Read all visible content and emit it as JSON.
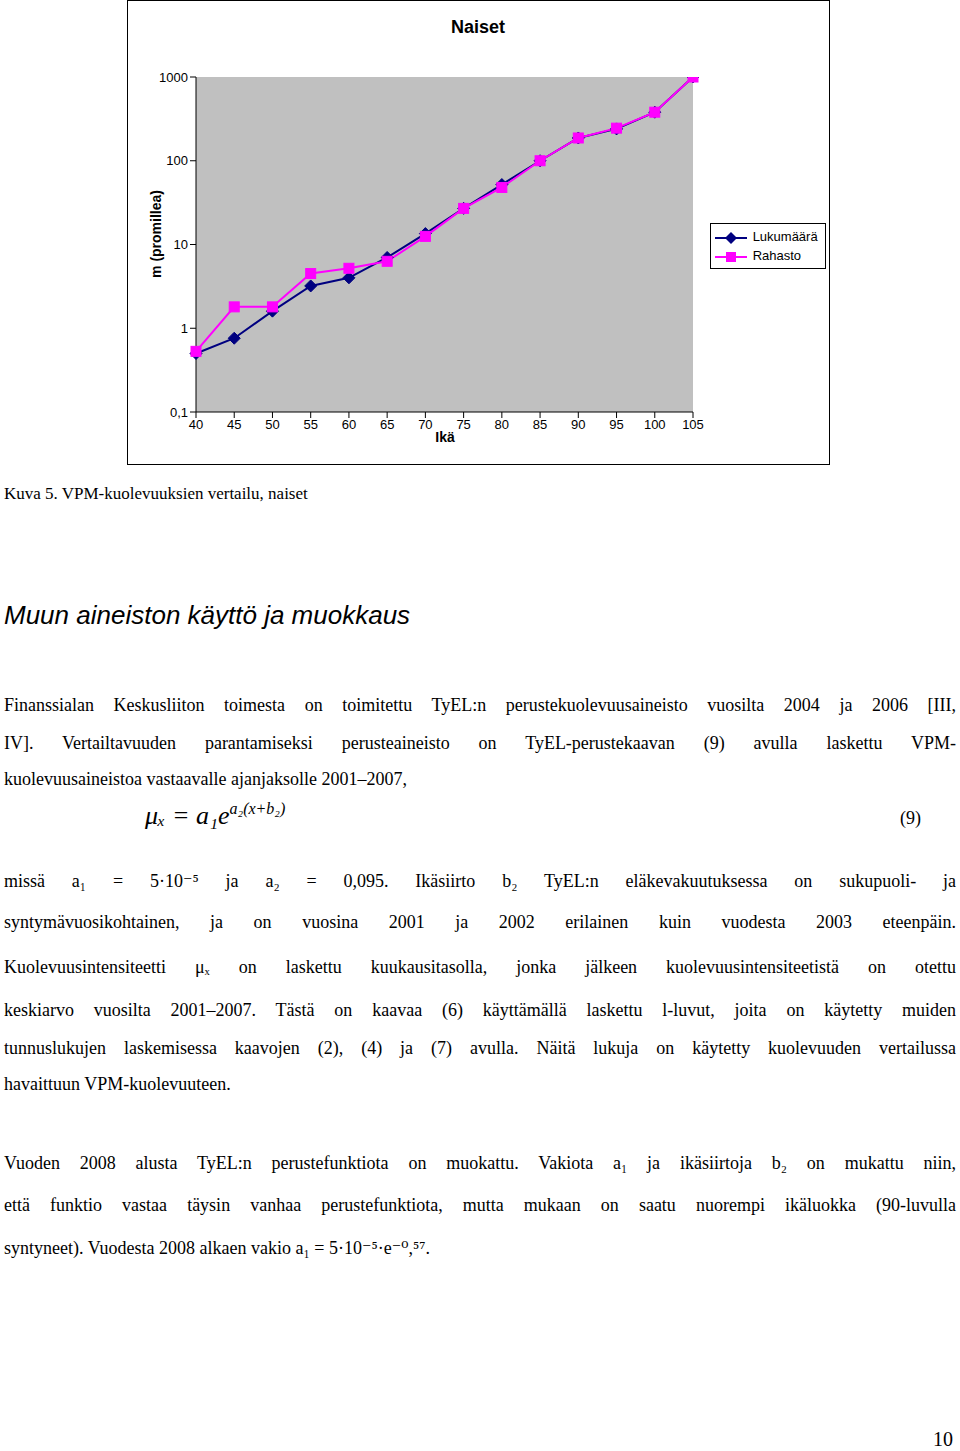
{
  "chart_data": {
    "type": "line",
    "title": "Naiset",
    "y_label": "m (promillea)",
    "x_label": "Ikä",
    "categories": [
      "40",
      "45",
      "50",
      "55",
      "60",
      "65",
      "70",
      "75",
      "80",
      "85",
      "90",
      "95",
      "100",
      "105"
    ],
    "series": [
      {
        "name": "Lukumäärä",
        "color": "#000080",
        "marker": "diamond",
        "values": [
          0.5,
          0.76,
          1.6,
          3.2,
          4.0,
          7.0,
          13.5,
          27,
          52,
          100,
          187,
          240,
          380,
          1000
        ]
      },
      {
        "name": "Rahasto",
        "color": "#ff00ff",
        "marker": "square",
        "values": [
          0.53,
          1.8,
          1.8,
          4.5,
          5.2,
          6.3,
          12.5,
          27,
          48,
          100,
          187,
          245,
          380,
          1000
        ]
      }
    ],
    "log": "y",
    "ylim": [
      0.1,
      1000
    ],
    "yticks": [
      {
        "value": 0.1,
        "label": "0,1"
      },
      1,
      10,
      100,
      1000
    ],
    "grid": false,
    "legend": "right"
  },
  "document": {
    "caption": "Kuva 5. VPM-kuolevuuksien vertailu, naiset",
    "heading": "Muun aineiston käyttö ja muokkaus",
    "paragraph1": [
      "Finanssialan Keskusliiton toimesta on toimitettu TyEL:n perustekuolevuusaineisto vuosilta 2004 ja 2006 [III,",
      "IV]. Vertailtavuuden parantamiseksi perusteaineisto on TyEL-perustekaavan (9) avulla laskettu VPM-",
      "kuolevuusaineistoa vastaavalle ajanjaksolle 2001–2007,"
    ],
    "formula": {
      "text": "μₓ = a₁e",
      "exponent": "a₂(x+b₂)",
      "number": "(9)"
    },
    "paragraph2": [
      "missä a₁ = 5·10⁻⁵ ja a₂ = 0,095. Ikäsiirto b₂ TyEL:n eläkevakuutuksessa on sukupuoli- ja",
      "syntymävuosikohtainen, ja on vuosina 2001 ja 2002 erilainen kuin vuodesta 2003 eteenpäin.",
      "Kuolevuusintensiteetti μₓ on laskettu kuukausitasolla, jonka jälkeen kuolevuusintensiteetistä on otettu",
      "keskiarvo vuosilta 2001–2007. Tästä on kaavaa (6) käyttämällä laskettu l-luvut, joita on käytetty muiden",
      "tunnuslukujen laskemisessa kaavojen (2), (4) ja (7) avulla. Näitä lukuja on käytetty kuolevuuden vertailussa",
      "havaittuun VPM-kuolevuuteen."
    ],
    "paragraph3": [
      "Vuoden 2008 alusta TyEL:n perustefunktiota on muokattu. Vakiota a₁ ja ikäsiirtoja b₂ on mukattu niin,",
      "että funktio vastaa täysin vanhaa perustefunktiota, mutta mukaan on saatu nuorempi ikäluokka (90-luvulla",
      "syntyneet). Vuodesta 2008 alkaen vakio a₁ = 5·10⁻⁵·e⁻⁰,⁵⁷."
    ],
    "page_number": "10"
  }
}
